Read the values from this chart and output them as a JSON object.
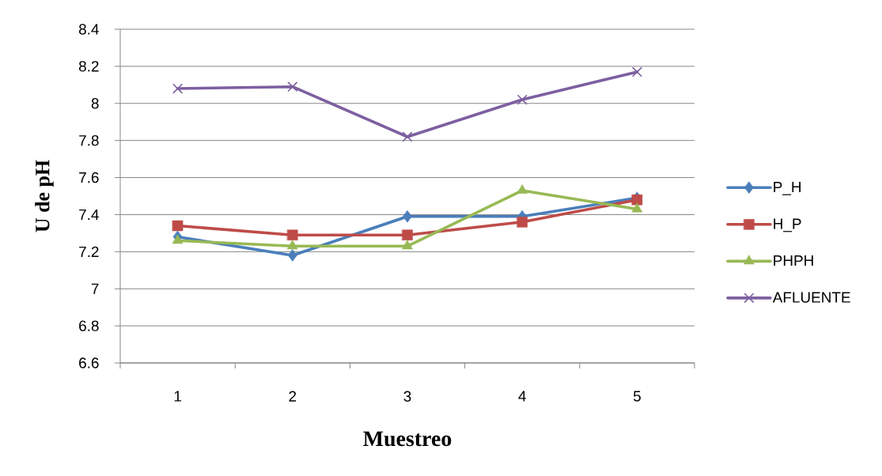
{
  "chart_data": {
    "type": "line",
    "xlabel": "Muestreo",
    "ylabel": "U de pH",
    "categories": [
      "1",
      "2",
      "3",
      "4",
      "5"
    ],
    "ylim": [
      6.6,
      8.4
    ],
    "yticks": [
      6.6,
      6.8,
      7,
      7.2,
      7.4,
      7.6,
      7.8,
      8,
      8.2,
      8.4
    ],
    "grid": "y",
    "legend": "right",
    "line_style": "solid",
    "series": [
      {
        "name": "P_H",
        "color": "#4a7ebb",
        "marker": "diamond",
        "values": [
          7.28,
          7.18,
          7.39,
          7.39,
          7.49
        ]
      },
      {
        "name": "H_P",
        "color": "#be4b48",
        "marker": "square",
        "values": [
          7.34,
          7.29,
          7.29,
          7.36,
          7.48
        ]
      },
      {
        "name": "PHPH",
        "color": "#98b954",
        "marker": "triangle",
        "values": [
          7.26,
          7.23,
          7.23,
          7.53,
          7.43
        ]
      },
      {
        "name": "AFLUENTE",
        "color": "#7d5fa0",
        "marker": "cross",
        "values": [
          8.08,
          8.09,
          7.82,
          8.02,
          8.17
        ]
      }
    ]
  }
}
